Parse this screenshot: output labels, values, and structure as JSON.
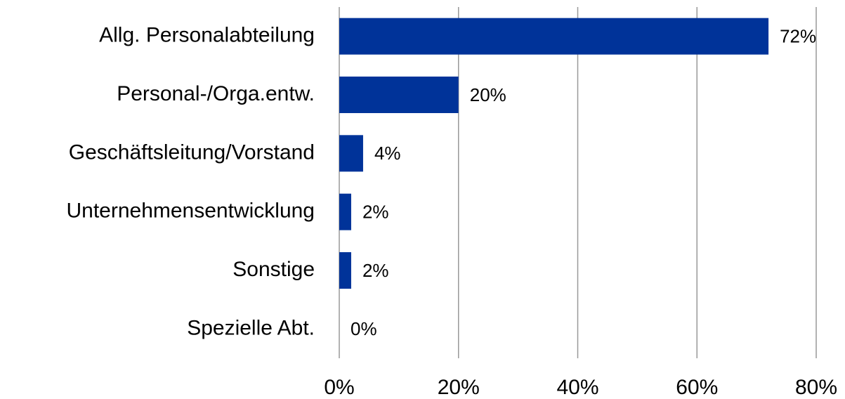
{
  "chart_data": {
    "type": "bar",
    "orientation": "horizontal",
    "categories": [
      "Allg. Personalabteilung",
      "Personal-/Orga.entw.",
      "Geschäftsleitung/Vorstand",
      "Unternehmensentwicklung",
      "Sonstige",
      "Spezielle Abt."
    ],
    "values": [
      72,
      20,
      4,
      2,
      2,
      0
    ],
    "value_labels": [
      "72%",
      "20%",
      "4%",
      "2%",
      "2%",
      "0%"
    ],
    "color": "#003399",
    "xlim": [
      0,
      80
    ],
    "xticks": [
      {
        "value": 0,
        "label": "0%"
      },
      {
        "value": 20,
        "label": "20%"
      },
      {
        "value": 40,
        "label": "40%"
      },
      {
        "value": 60,
        "label": "60%"
      },
      {
        "value": 80,
        "label": "80%"
      }
    ],
    "grid": true
  }
}
